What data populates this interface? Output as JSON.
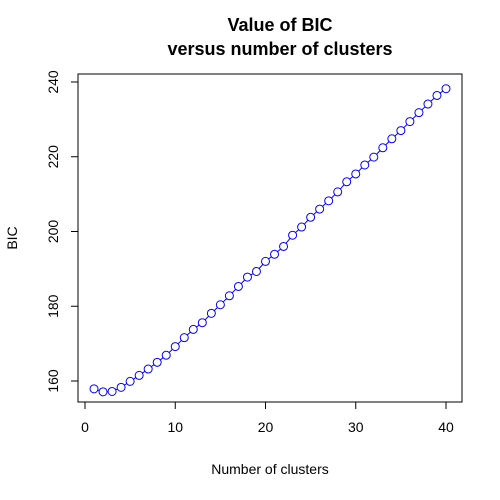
{
  "chart_data": {
    "type": "line",
    "title": "Value of BIC",
    "subtitle": "versus number of clusters",
    "xlabel": "Number of clusters",
    "ylabel": "BIC",
    "xlim": [
      0,
      40
    ],
    "ylim": [
      155,
      240
    ],
    "xticks": [
      0,
      10,
      20,
      30,
      40
    ],
    "yticks": [
      160,
      180,
      200,
      220,
      240
    ],
    "grid": false,
    "series": [
      {
        "color": "#0000ff",
        "marker": "open-circle",
        "x": [
          1,
          2,
          3,
          4,
          5,
          6,
          7,
          8,
          9,
          10,
          11,
          12,
          13,
          14,
          15,
          16,
          17,
          18,
          19,
          20,
          21,
          22,
          23,
          24,
          25,
          26,
          27,
          28,
          29,
          30,
          31,
          32,
          33,
          34,
          35,
          36,
          37,
          38,
          39,
          40
        ],
        "y": [
          157.9,
          157.1,
          157.2,
          158.3,
          159.9,
          161.5,
          163.2,
          165.0,
          166.9,
          169.2,
          171.6,
          173.8,
          175.6,
          178.1,
          180.4,
          182.8,
          185.3,
          187.8,
          189.3,
          192.0,
          193.9,
          196.0,
          199.0,
          201.2,
          203.8,
          206.0,
          208.2,
          210.6,
          213.3,
          215.4,
          217.8,
          219.9,
          222.4,
          224.8,
          227.0,
          229.4,
          231.8,
          234.1,
          236.4,
          238.2
        ]
      }
    ]
  }
}
